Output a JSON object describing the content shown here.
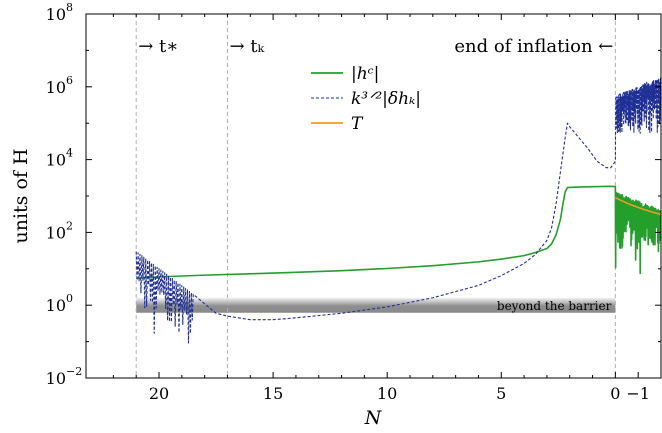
{
  "chart_data": {
    "type": "line",
    "title": "",
    "xlabel": "N",
    "ylabel": "units of H",
    "xlim": [
      23.2,
      -2.0
    ],
    "x_reversed": true,
    "ylim_log10": [
      -2,
      8
    ],
    "yscale": "log",
    "grid": false,
    "legend_position": "top-center",
    "x_ticks": [
      20,
      15,
      10,
      5,
      0,
      -1
    ],
    "x_tick_labels": [
      "20",
      "15",
      "10",
      "5",
      "0",
      "−1"
    ],
    "y_tick_exponents": [
      -2,
      0,
      2,
      4,
      6,
      8
    ],
    "y_tick_labels": [
      "10",
      "10",
      "10",
      "10",
      "10",
      "10"
    ],
    "y_tick_superscripts": [
      "−2",
      "0",
      "2",
      "4",
      "6",
      "8"
    ],
    "vlines": [
      {
        "x": 21,
        "label": "→ t∗"
      },
      {
        "x": 17,
        "label": "→ tₖ"
      },
      {
        "x": 0,
        "label": "end of inflation ←"
      }
    ],
    "band": {
      "x_from": 21,
      "x_to": 0,
      "y_from": 0.62,
      "y_to": 1.6,
      "label": "beyond the barrier"
    },
    "series": [
      {
        "name": "|hᶜ|",
        "color": "#22a02b",
        "style": "solid",
        "points": [
          [
            21,
            5.5
          ],
          [
            20,
            6.0
          ],
          [
            18,
            6.7
          ],
          [
            16,
            7.3
          ],
          [
            14,
            8.0
          ],
          [
            12,
            8.9
          ],
          [
            10,
            10.2
          ],
          [
            8,
            12.2
          ],
          [
            6,
            15.5
          ],
          [
            5,
            18.5
          ],
          [
            4,
            23
          ],
          [
            3.5,
            28
          ],
          [
            3,
            36
          ],
          [
            2.8,
            48
          ],
          [
            2.6,
            85
          ],
          [
            2.4,
            240
          ],
          [
            2.3,
            600
          ],
          [
            2.2,
            1300
          ],
          [
            2.1,
            1700
          ],
          [
            1.8,
            1750
          ],
          [
            1.0,
            1800
          ],
          [
            0.2,
            1850
          ],
          [
            0,
            1800
          ]
        ],
        "oscillating_tail": {
          "x_from": 0,
          "x_to": -2.0,
          "envelope_top_start": 1300,
          "envelope_top_end": 420,
          "floor_start": 30,
          "floor_end": 40,
          "min_dips": 5
        }
      },
      {
        "name": "k³ᐟ²|δhₖ|",
        "color": "#1f2f96",
        "style": "dashed",
        "points": [
          [
            21,
            25
          ],
          [
            20.5,
            6
          ],
          [
            20,
            3.5
          ],
          [
            19.5,
            2.0
          ],
          [
            19,
            1.2
          ],
          [
            18.5,
            0.9
          ],
          [
            17.5,
            0.6
          ],
          [
            17,
            0.5
          ],
          [
            16,
            0.4
          ],
          [
            15,
            0.4
          ],
          [
            14,
            0.45
          ],
          [
            12,
            0.6
          ],
          [
            10,
            0.9
          ],
          [
            8,
            1.6
          ],
          [
            6,
            3.5
          ],
          [
            5,
            6.5
          ],
          [
            4,
            14
          ],
          [
            3.5,
            25
          ],
          [
            3,
            60
          ],
          [
            2.8,
            130
          ],
          [
            2.6,
            600
          ],
          [
            2.4,
            5000
          ],
          [
            2.2,
            40000
          ],
          [
            2.1,
            100000
          ],
          [
            2.0,
            80000
          ],
          [
            1.6,
            40000
          ],
          [
            1.2,
            20000
          ],
          [
            0.8,
            9000
          ],
          [
            0.4,
            6000
          ],
          [
            0.2,
            6000
          ],
          [
            0,
            9000
          ]
        ],
        "oscillating_head": {
          "x_from": 21,
          "x_to": 18.5,
          "min_dips": 0.02
        },
        "oscillating_tail": {
          "x_from": 0,
          "x_to": -2.0,
          "envelope_top_start": 600000,
          "envelope_top_end": 1900000,
          "floor": 50000
        }
      },
      {
        "name": "T",
        "color": "#f39c1d",
        "style": "solid",
        "points": [
          [
            0,
            900
          ],
          [
            -0.2,
            780
          ],
          [
            -0.5,
            640
          ],
          [
            -0.8,
            540
          ],
          [
            -1.1,
            460
          ],
          [
            -1.4,
            400
          ],
          [
            -1.7,
            350
          ],
          [
            -2.0,
            310
          ]
        ]
      }
    ]
  }
}
